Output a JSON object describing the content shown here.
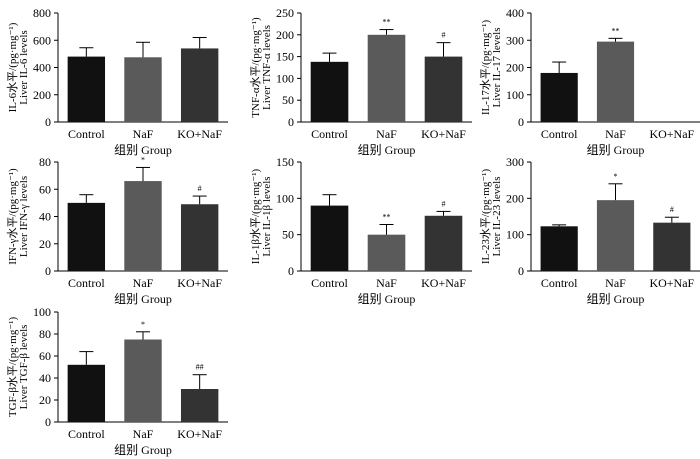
{
  "chart_data": [
    {
      "type": "bar",
      "categories": [
        "Control",
        "NaF",
        "KO+NaF"
      ],
      "values": [
        480,
        475,
        540
      ],
      "errors": [
        65,
        110,
        80
      ],
      "significance": [
        "",
        "",
        ""
      ],
      "bar_colors": [
        "#111111",
        "#5a5a5a",
        "#333333"
      ],
      "ylabel_cn": "IL-6水平/(pg·mg⁻¹)",
      "ylabel_en": "Liver IL-6 levels",
      "xlabel": "组别 Group",
      "ylim": [
        0,
        800
      ],
      "yticks": [
        "0",
        "200",
        "400",
        "600",
        "800"
      ]
    },
    {
      "type": "bar",
      "categories": [
        "Control",
        "NaF",
        "KO+NaF"
      ],
      "values": [
        138,
        200,
        150
      ],
      "errors": [
        20,
        12,
        32
      ],
      "significance": [
        "",
        "**",
        "#"
      ],
      "bar_colors": [
        "#111111",
        "#5a5a5a",
        "#333333"
      ],
      "ylabel_cn": "TNF-α水平/(pg·mg⁻¹)",
      "ylabel_en": "Liver TNF-α levels",
      "xlabel": "组别 Group",
      "ylim": [
        0,
        250
      ],
      "yticks": [
        "0",
        "50",
        "100",
        "150",
        "200",
        "250"
      ]
    },
    {
      "type": "bar",
      "categories": [
        "Control",
        "NaF",
        "KO+NaF"
      ],
      "values": [
        180,
        295,
        0
      ],
      "errors": [
        40,
        12,
        0
      ],
      "significance": [
        "",
        "**",
        ""
      ],
      "bar_colors": [
        "#111111",
        "#5a5a5a",
        "#333333"
      ],
      "ylabel_cn": "IL-17水平/(pg·mg⁻¹)",
      "ylabel_en": "Liver IL-17 levels",
      "xlabel": "组别 Group",
      "ylim": [
        0,
        400
      ],
      "yticks": [
        "0",
        "100",
        "200",
        "300",
        "400"
      ]
    },
    {
      "type": "bar",
      "categories": [
        "Control",
        "NaF",
        "KO+NaF"
      ],
      "values": [
        50,
        66,
        49
      ],
      "errors": [
        6,
        10,
        6
      ],
      "significance": [
        "",
        "*",
        "#"
      ],
      "bar_colors": [
        "#111111",
        "#5a5a5a",
        "#333333"
      ],
      "ylabel_cn": "IFN-γ水平/(pg·mg⁻¹)",
      "ylabel_en": "Liver IFN-γ levels",
      "xlabel": "组别 Group",
      "ylim": [
        0,
        80
      ],
      "yticks": [
        "0",
        "20",
        "40",
        "60",
        "80"
      ]
    },
    {
      "type": "bar",
      "categories": [
        "Control",
        "NaF",
        "KO+NaF"
      ],
      "values": [
        90,
        50,
        76
      ],
      "errors": [
        15,
        14,
        6
      ],
      "significance": [
        "",
        "**",
        "#"
      ],
      "bar_colors": [
        "#111111",
        "#5a5a5a",
        "#333333"
      ],
      "ylabel_cn": "IL-1β水平/(pg·mg⁻¹)",
      "ylabel_en": "Liver IL-1β levels",
      "xlabel": "组别 Group",
      "ylim": [
        0,
        150
      ],
      "yticks": [
        "0",
        "50",
        "100",
        "150"
      ]
    },
    {
      "type": "bar",
      "categories": [
        "Control",
        "NaF",
        "KO+NaF"
      ],
      "values": [
        123,
        195,
        133
      ],
      "errors": [
        4,
        45,
        15
      ],
      "significance": [
        "",
        "*",
        "#"
      ],
      "bar_colors": [
        "#111111",
        "#5a5a5a",
        "#333333"
      ],
      "ylabel_cn": "IL-23水平/(pg·mg⁻¹)",
      "ylabel_en": "Liver IL-23 levels",
      "xlabel": "组别 Group",
      "ylim": [
        0,
        300
      ],
      "yticks": [
        "0",
        "100",
        "200",
        "300"
      ]
    },
    {
      "type": "bar",
      "categories": [
        "Control",
        "NaF",
        "KO+NaF"
      ],
      "values": [
        52,
        75,
        30
      ],
      "errors": [
        12,
        7,
        13
      ],
      "significance": [
        "",
        "*",
        "##"
      ],
      "bar_colors": [
        "#111111",
        "#5a5a5a",
        "#333333"
      ],
      "ylabel_cn": "TGF-β水平/(pg·mg⁻¹)",
      "ylabel_en": "Liver TGF-β levels",
      "xlabel": "组别 Group",
      "ylim": [
        0,
        100
      ],
      "yticks": [
        "0",
        "20",
        "40",
        "60",
        "80",
        "100"
      ]
    }
  ]
}
